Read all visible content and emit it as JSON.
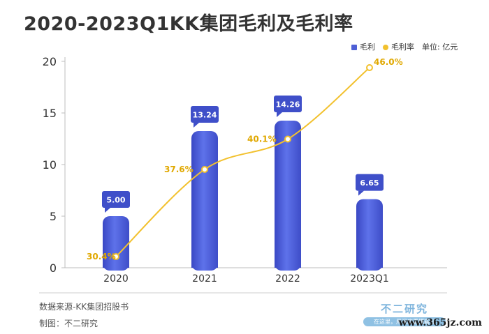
{
  "chart_data": {
    "type": "bar",
    "title": "2020-2023Q1KK集团毛利及毛利率",
    "categories": [
      "2020",
      "2021",
      "2022",
      "2023Q1"
    ],
    "ylim": [
      0,
      20
    ],
    "yticks": [
      0,
      5,
      10,
      15,
      20
    ],
    "unit_label": "单位: 亿元",
    "series": [
      {
        "name": "毛利",
        "type": "bar",
        "values": [
          5.0,
          13.24,
          14.26,
          6.65
        ],
        "labels": [
          "5.00",
          "13.24",
          "14.26",
          "6.65"
        ],
        "color": "#4e5fd6"
      },
      {
        "name": "毛利率",
        "type": "line",
        "values": [
          30.4,
          37.6,
          40.1,
          46.0
        ],
        "labels": [
          "30.4%",
          "37.6%",
          "40.1%",
          "46.0%"
        ],
        "color": "#f2c12e"
      }
    ],
    "grid": false,
    "legend_position": "top-right"
  },
  "footer": {
    "source": "数据来源-KK集团招股书",
    "credit": "制图：不二研究"
  },
  "logo": {
    "name": "不二研究",
    "slogan": "在这里，用深度看懂商业"
  },
  "watermark": {
    "site": "www.365jz.com"
  }
}
